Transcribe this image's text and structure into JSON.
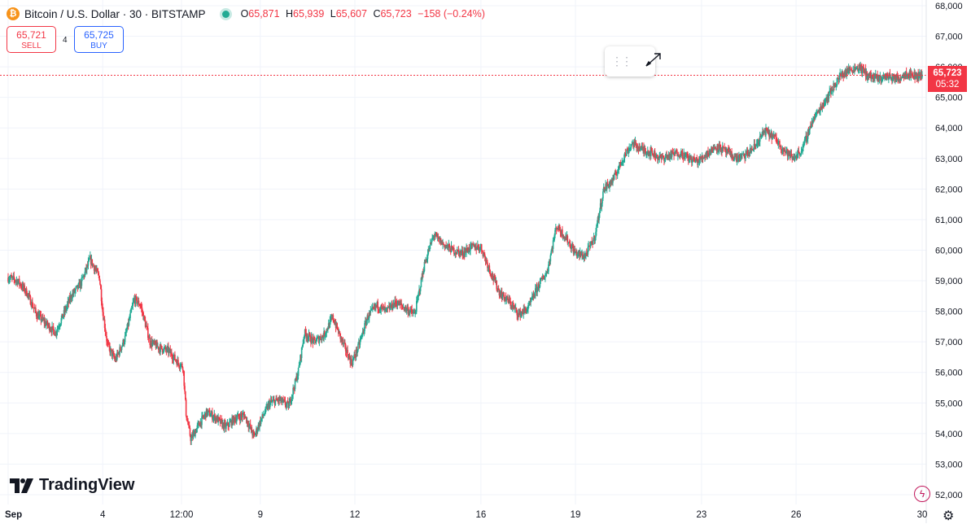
{
  "header": {
    "coin_glyph": "₿",
    "symbol": "Bitcoin / U.S. Dollar · 30 · BITSTAMP",
    "open_label": "O",
    "open": "65,871",
    "high_label": "H",
    "high": "65,939",
    "low_label": "L",
    "low": "65,607",
    "close_label": "C",
    "close": "65,723",
    "change": "−158 (−0.24%)"
  },
  "trade": {
    "sell_price": "65,721",
    "sell_label": "SELL",
    "spread": "4",
    "buy_price": "65,725",
    "buy_label": "BUY"
  },
  "last_price": {
    "price": "65,723",
    "countdown": "05:32"
  },
  "brand": {
    "name": "TradingView"
  },
  "colors": {
    "up": "#22ab94",
    "down": "#f23645",
    "grid": "#f0f3fa",
    "axis_text": "#131722"
  },
  "icons": {
    "drag": "drag-handle-icon",
    "draw": "pencil-arrow-icon",
    "alert": "lightning-icon",
    "settings": "gear-icon"
  },
  "chart_data": {
    "type": "candlestick",
    "interval": "30",
    "ylim": [
      51500,
      68200
    ],
    "y_ticks": [
      52000,
      53000,
      54000,
      55000,
      56000,
      57000,
      58000,
      59000,
      60000,
      61000,
      62000,
      63000,
      64000,
      65000,
      66000,
      67000,
      68000
    ],
    "y_tick_labels": [
      "52,000",
      "53,000",
      "54,000",
      "55,000",
      "56,000",
      "57,000",
      "58,000",
      "59,000",
      "60,000",
      "61,000",
      "62,000",
      "63,000",
      "64,000",
      "65,000",
      "66,000",
      "67,000",
      "68,000"
    ],
    "x_ticks": [
      "Sep",
      "4",
      "12:00",
      "9",
      "12",
      "16",
      "19",
      "23",
      "26",
      "30"
    ],
    "x_tick_days": [
      1,
      4,
      6.5,
      9,
      12,
      16,
      19,
      23,
      26,
      30
    ],
    "x_range_days": [
      1,
      30
    ],
    "price_path": [
      [
        1.0,
        59100
      ],
      [
        1.3,
        59000
      ],
      [
        1.6,
        58600
      ],
      [
        1.9,
        57900
      ],
      [
        2.2,
        57600
      ],
      [
        2.5,
        57300
      ],
      [
        2.8,
        58000
      ],
      [
        3.0,
        58500
      ],
      [
        3.3,
        58900
      ],
      [
        3.6,
        59700
      ],
      [
        3.9,
        59100
      ],
      [
        4.0,
        58000
      ],
      [
        4.15,
        56900
      ],
      [
        4.4,
        56400
      ],
      [
        4.7,
        57100
      ],
      [
        5.0,
        58400
      ],
      [
        5.2,
        58200
      ],
      [
        5.5,
        57000
      ],
      [
        5.8,
        56800
      ],
      [
        6.1,
        56700
      ],
      [
        6.4,
        56300
      ],
      [
        6.55,
        56200
      ],
      [
        6.65,
        54600
      ],
      [
        6.8,
        53800
      ],
      [
        7.0,
        54200
      ],
      [
        7.3,
        54700
      ],
      [
        7.6,
        54500
      ],
      [
        7.9,
        54200
      ],
      [
        8.2,
        54500
      ],
      [
        8.5,
        54600
      ],
      [
        8.8,
        53900
      ],
      [
        9.0,
        54400
      ],
      [
        9.3,
        55000
      ],
      [
        9.6,
        55100
      ],
      [
        9.9,
        54900
      ],
      [
        10.2,
        56000
      ],
      [
        10.4,
        57300
      ],
      [
        10.7,
        57000
      ],
      [
        11.0,
        57200
      ],
      [
        11.3,
        57800
      ],
      [
        11.6,
        57000
      ],
      [
        11.9,
        56300
      ],
      [
        12.1,
        56800
      ],
      [
        12.4,
        57800
      ],
      [
        12.7,
        58200
      ],
      [
        13.0,
        58000
      ],
      [
        13.3,
        58300
      ],
      [
        13.6,
        58100
      ],
      [
        13.9,
        57900
      ],
      [
        14.2,
        59500
      ],
      [
        14.5,
        60500
      ],
      [
        14.8,
        60200
      ],
      [
        15.1,
        60000
      ],
      [
        15.4,
        59900
      ],
      [
        15.7,
        60100
      ],
      [
        16.0,
        60100
      ],
      [
        16.3,
        59300
      ],
      [
        16.6,
        58600
      ],
      [
        16.9,
        58300
      ],
      [
        17.2,
        57900
      ],
      [
        17.5,
        58100
      ],
      [
        17.8,
        58800
      ],
      [
        18.1,
        59300
      ],
      [
        18.4,
        60800
      ],
      [
        18.7,
        60400
      ],
      [
        19.0,
        59900
      ],
      [
        19.3,
        59800
      ],
      [
        19.6,
        60400
      ],
      [
        19.9,
        62000
      ],
      [
        20.2,
        62300
      ],
      [
        20.5,
        63000
      ],
      [
        20.8,
        63500
      ],
      [
        21.1,
        63300
      ],
      [
        21.4,
        63200
      ],
      [
        21.7,
        63000
      ],
      [
        22.0,
        63100
      ],
      [
        22.3,
        63200
      ],
      [
        22.6,
        63000
      ],
      [
        22.9,
        62900
      ],
      [
        23.2,
        63200
      ],
      [
        23.5,
        63400
      ],
      [
        23.8,
        63200
      ],
      [
        24.1,
        63000
      ],
      [
        24.4,
        63100
      ],
      [
        24.7,
        63400
      ],
      [
        25.0,
        63900
      ],
      [
        25.3,
        63700
      ],
      [
        25.6,
        63300
      ],
      [
        25.9,
        63000
      ],
      [
        26.2,
        63300
      ],
      [
        26.5,
        64200
      ],
      [
        26.8,
        64700
      ],
      [
        27.1,
        65200
      ],
      [
        27.4,
        65700
      ],
      [
        27.7,
        65900
      ],
      [
        28.0,
        66000
      ],
      [
        28.3,
        65700
      ],
      [
        28.6,
        65600
      ],
      [
        28.9,
        65700
      ],
      [
        29.2,
        65600
      ],
      [
        29.5,
        65800
      ],
      [
        29.8,
        65700
      ],
      [
        30.0,
        65723
      ]
    ]
  }
}
